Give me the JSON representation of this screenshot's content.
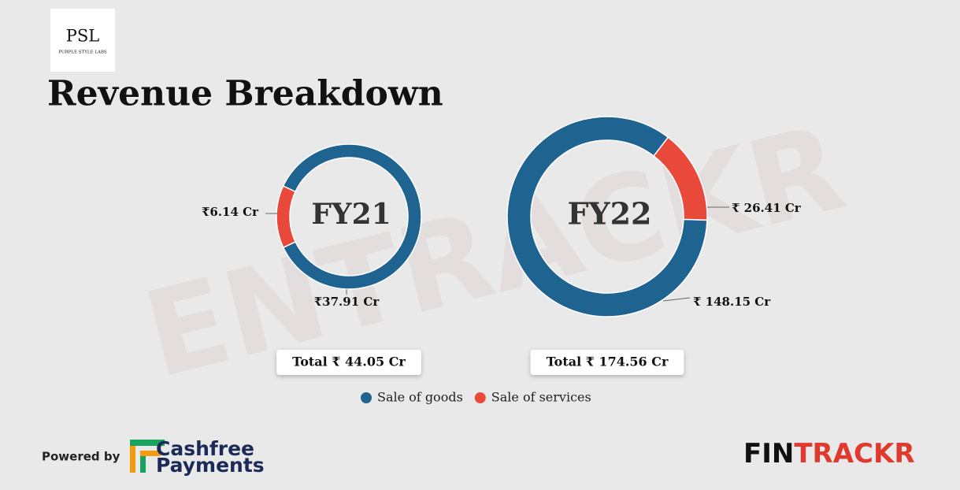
{
  "logo": {
    "abbr": "PSL",
    "name": "PURPLE STYLE LABS"
  },
  "title": "Revenue Breakdown",
  "watermark": "ENTRACKR",
  "chart_data": {
    "type": "donut",
    "categories": [
      "Sale of goods",
      "Sale of services"
    ],
    "colors": [
      "#1f6391",
      "#e8493a"
    ],
    "series": [
      {
        "name": "FY21",
        "values": [
          37.91,
          6.14
        ],
        "value_labels": [
          "₹37.91 Cr",
          "₹6.14 Cr"
        ],
        "total_label": "Total ₹ 44.05 Cr"
      },
      {
        "name": "FY22",
        "values": [
          148.15,
          26.41
        ],
        "value_labels": [
          "₹ 148.15 Cr",
          "₹ 26.41 Cr"
        ],
        "total_label": "Total ₹ 174.56 Cr"
      }
    ]
  },
  "footer": {
    "powered_by": "Powered by",
    "sponsor": [
      "Cashfree",
      "Payments"
    ],
    "brand": [
      "FIN",
      "TRACKR"
    ]
  }
}
